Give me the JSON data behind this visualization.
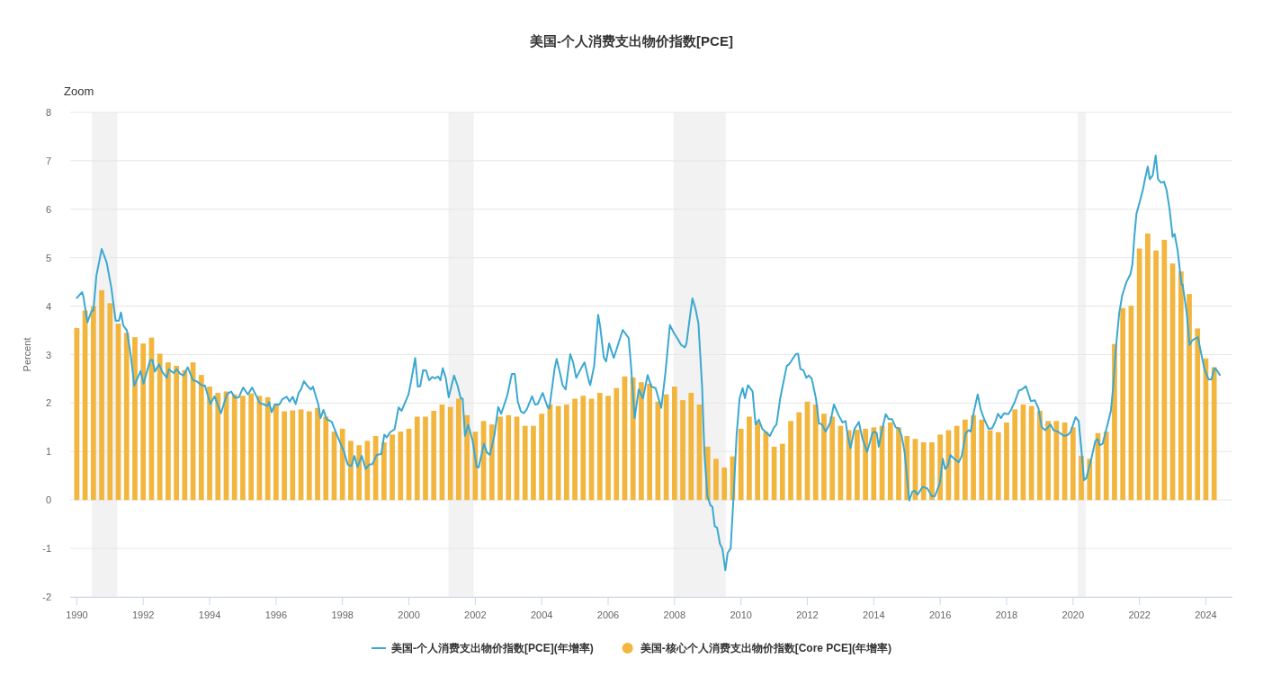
{
  "chart_data": {
    "type": "bar",
    "title": "美国-个人消费支出物价指数[PCE]",
    "ylabel": "Percent",
    "annotations": [
      "Zoom"
    ],
    "xlim": [
      1989.8,
      2024.8
    ],
    "xticks": [
      1990,
      1992,
      1994,
      1996,
      1998,
      2000,
      2002,
      2004,
      2006,
      2008,
      2010,
      2012,
      2014,
      2016,
      2018,
      2020,
      2022,
      2024
    ],
    "ylim": [
      -2,
      8
    ],
    "yticks": [
      -2,
      -1,
      0,
      1,
      2,
      3,
      4,
      5,
      6,
      7,
      8
    ],
    "grid": "y",
    "legend": "bottom",
    "bands": [
      {
        "axis": "x",
        "from": 1990.46,
        "to": 1991.22,
        "color": "#f2f2f2"
      },
      {
        "axis": "x",
        "from": 2001.19,
        "to": 2001.95,
        "color": "#f2f2f2"
      },
      {
        "axis": "x",
        "from": 2007.97,
        "to": 2009.54,
        "color": "#f2f2f2"
      },
      {
        "axis": "x",
        "from": 2020.14,
        "to": 2020.38,
        "color": "#f2f2f2"
      }
    ],
    "series": [
      {
        "name": "美国-个人消费支出物价指数[PCE](年增率)",
        "type": "line",
        "color": "#3ba8d1",
        "x": [
          1990,
          1990.16,
          1990.2,
          1990.32,
          1990.45,
          1990.5,
          1990.59,
          1990.75,
          1990.9,
          1991.04,
          1991.17,
          1991.27,
          1991.33,
          1991.4,
          1991.51,
          1991.63,
          1991.73,
          1991.92,
          1992.01,
          1992.21,
          1992.28,
          1992.35,
          1992.48,
          1992.57,
          1992.71,
          1992.77,
          1992.92,
          1993.01,
          1993.12,
          1993.22,
          1993.34,
          1993.5,
          1993.61,
          1993.75,
          1993.86,
          1994.02,
          1994.15,
          1994.34,
          1994.52,
          1994.65,
          1994.76,
          1994.88,
          1995.01,
          1995.15,
          1995.28,
          1995.51,
          1995.64,
          1995.74,
          1995.79,
          1995.87,
          1995.96,
          1996.1,
          1996.19,
          1996.32,
          1996.41,
          1996.5,
          1996.59,
          1996.68,
          1996.75,
          1996.84,
          1996.96,
          1997.05,
          1997.11,
          1997.27,
          1997.34,
          1997.43,
          1997.52,
          1997.68,
          1997.81,
          1997.98,
          1998.04,
          1998.16,
          1998.27,
          1998.36,
          1998.45,
          1998.58,
          1998.7,
          1998.81,
          1998.9,
          1999.03,
          1999.17,
          1999.26,
          1999.33,
          1999.44,
          1999.57,
          1999.69,
          1999.78,
          1999.99,
          2000.07,
          2000.19,
          2000.27,
          2000.34,
          2000.43,
          2000.52,
          2000.61,
          2000.7,
          2000.79,
          2000.88,
          2000.95,
          2001.02,
          2001.11,
          2001.2,
          2001.36,
          2001.47,
          2001.56,
          2001.62,
          2001.69,
          2001.79,
          2001.92,
          2002.04,
          2002.1,
          2002.26,
          2002.35,
          2002.44,
          2002.58,
          2002.69,
          2002.78,
          2002.96,
          2003.1,
          2003.19,
          2003.28,
          2003.37,
          2003.46,
          2003.55,
          2003.71,
          2003.8,
          2003.88,
          2004.03,
          2004.18,
          2004.23,
          2004.39,
          2004.45,
          2004.54,
          2004.63,
          2004.72,
          2004.86,
          2004.95,
          2005.04,
          2005.18,
          2005.29,
          2005.42,
          2005.46,
          2005.58,
          2005.7,
          2005.76,
          2005.87,
          2005.94,
          2006.03,
          2006.17,
          2006.44,
          2006.62,
          2006.69,
          2006.8,
          2006.92,
          2007.05,
          2007.19,
          2007.3,
          2007.43,
          2007.6,
          2007.73,
          2007.86,
          2007.98,
          2008.09,
          2008.2,
          2008.31,
          2008.36,
          2008.47,
          2008.54,
          2008.63,
          2008.72,
          2008.83,
          2008.9,
          2008.99,
          2009.08,
          2009.14,
          2009.21,
          2009.28,
          2009.37,
          2009.44,
          2009.53,
          2009.6,
          2009.69,
          2009.78,
          2009.87,
          2009.96,
          2010.05,
          2010.12,
          2010.21,
          2010.35,
          2010.44,
          2010.54,
          2010.64,
          2010.87,
          2011,
          2011.07,
          2011.18,
          2011.38,
          2011.45,
          2011.65,
          2011.72,
          2011.79,
          2011.88,
          2011.97,
          2012.04,
          2012.13,
          2012.26,
          2012.35,
          2012.44,
          2012.55,
          2012.69,
          2012.8,
          2012.94,
          2013.06,
          2013.15,
          2013.21,
          2013.3,
          2013.42,
          2013.55,
          2013.66,
          2013.8,
          2013.96,
          2014.03,
          2014.09,
          2014.15,
          2014.24,
          2014.36,
          2014.45,
          2014.55,
          2014.66,
          2014.75,
          2014.84,
          2014.93,
          2014.99,
          2015.07,
          2015.16,
          2015.23,
          2015.32,
          2015.47,
          2015.61,
          2015.75,
          2015.84,
          2015.99,
          2016.08,
          2016.15,
          2016.23,
          2016.31,
          2016.42,
          2016.56,
          2016.65,
          2016.77,
          2016.86,
          2016.92,
          2017.01,
          2017.13,
          2017.22,
          2017.33,
          2017.46,
          2017.56,
          2017.65,
          2017.74,
          2017.83,
          2017.92,
          2018.05,
          2018.14,
          2018.25,
          2018.37,
          2018.46,
          2018.58,
          2018.73,
          2018.85,
          2018.96,
          2019.06,
          2019.16,
          2019.32,
          2019.41,
          2019.55,
          2019.73,
          2019.86,
          2019.93,
          2020.08,
          2020.17,
          2020.26,
          2020.33,
          2020.4,
          2020.53,
          2020.67,
          2020.74,
          2020.8,
          2020.89,
          2021.03,
          2021.14,
          2021.21,
          2021.3,
          2021.39,
          2021.48,
          2021.61,
          2021.73,
          2021.79,
          2021.84,
          2021.91,
          2022.02,
          2022.11,
          2022.16,
          2022.25,
          2022.31,
          2022.4,
          2022.49,
          2022.56,
          2022.65,
          2022.74,
          2022.82,
          2022.91,
          2023,
          2023.06,
          2023.15,
          2023.27,
          2023.3,
          2023.42,
          2023.51,
          2023.6,
          2023.76,
          2023.85,
          2023.96,
          2024.08,
          2024.17,
          2024.26,
          2024.33,
          2024.42
        ],
        "values": [
          4.17,
          4.29,
          4.19,
          3.67,
          3.91,
          3.91,
          4.63,
          5.18,
          4.9,
          4.38,
          3.7,
          3.7,
          3.87,
          3.6,
          3.5,
          2.96,
          2.36,
          2.66,
          2.4,
          2.89,
          2.89,
          2.65,
          2.8,
          2.65,
          2.52,
          2.7,
          2.62,
          2.7,
          2.6,
          2.57,
          2.74,
          2.47,
          2.45,
          2.37,
          2.36,
          1.98,
          2.14,
          1.79,
          2.18,
          2.24,
          2.11,
          2.12,
          2.32,
          2.18,
          2.32,
          2,
          1.97,
          1.94,
          2.02,
          1.81,
          1.97,
          1.97,
          2.08,
          2.13,
          2.03,
          2.13,
          1.98,
          2.21,
          2.28,
          2.45,
          2.34,
          2.28,
          2.34,
          1.98,
          1.69,
          1.86,
          1.67,
          1.61,
          1.38,
          1.1,
          1.01,
          0.73,
          0.7,
          0.91,
          0.68,
          0.91,
          0.64,
          0.73,
          0.74,
          0.93,
          0.95,
          1.35,
          1.29,
          1.4,
          1.46,
          1.91,
          1.84,
          2.18,
          2.46,
          2.93,
          2.34,
          2.35,
          2.68,
          2.67,
          2.47,
          2.54,
          2.51,
          2.55,
          2.47,
          2.72,
          2.52,
          2.12,
          2.57,
          2.35,
          2.1,
          2.09,
          1.32,
          1.55,
          1.22,
          0.68,
          0.67,
          1.16,
          0.98,
          0.93,
          1.35,
          1.92,
          1.78,
          2.15,
          2.6,
          2.6,
          2.03,
          1.83,
          1.79,
          1.87,
          2.14,
          1.97,
          1.98,
          2.21,
          1.91,
          1.89,
          2.72,
          2.91,
          2.65,
          2.37,
          2.28,
          3.01,
          2.83,
          2.52,
          2.71,
          2.84,
          2.46,
          2.37,
          2.77,
          3.82,
          3.58,
          2.94,
          2.86,
          3.23,
          2.93,
          3.51,
          3.34,
          2.77,
          1.69,
          2.28,
          2.1,
          2.58,
          2.34,
          2.31,
          1.9,
          2.65,
          3.61,
          3.45,
          3.33,
          3.2,
          3.15,
          3.23,
          3.82,
          4.16,
          3.95,
          3.64,
          2.34,
          0.98,
          0.08,
          -0.11,
          -0.14,
          -0.54,
          -0.57,
          -0.91,
          -1,
          -1.45,
          -1.09,
          -1,
          0.11,
          1.35,
          2.1,
          2.31,
          2.1,
          2.37,
          2.24,
          1.56,
          1.66,
          1.47,
          1.32,
          1.5,
          1.56,
          2.09,
          2.77,
          2.8,
          3.01,
          3.02,
          2.7,
          2.68,
          2.52,
          2.57,
          2.51,
          2.09,
          1.58,
          1.56,
          1.41,
          1.6,
          1.97,
          1.75,
          1.6,
          1.63,
          1.35,
          1.07,
          1.47,
          1.61,
          1.26,
          0.99,
          1.38,
          1.41,
          1.38,
          1.1,
          1.42,
          1.77,
          1.67,
          1.67,
          1.5,
          1.48,
          1.32,
          0.98,
          0.54,
          -0.01,
          0.17,
          0.19,
          0.11,
          0.27,
          0.24,
          0.08,
          0.08,
          0.35,
          0.85,
          0.64,
          0.7,
          0.93,
          0.85,
          0.78,
          0.91,
          1.38,
          1.44,
          1.41,
          1.81,
          2.18,
          1.87,
          1.66,
          1.47,
          1.48,
          1.6,
          1.78,
          1.69,
          1.79,
          1.77,
          1.87,
          2.03,
          2.26,
          2.28,
          2.35,
          2.04,
          2.06,
          1.89,
          1.5,
          1.44,
          1.56,
          1.44,
          1.41,
          1.32,
          1.35,
          1.41,
          1.71,
          1.63,
          0.98,
          0.41,
          0.45,
          0.79,
          1.21,
          1.26,
          1.13,
          1.16,
          1.53,
          1.84,
          2.34,
          3.2,
          3.85,
          4.22,
          4.5,
          4.66,
          4.87,
          5.37,
          5.91,
          6.18,
          6.42,
          6.6,
          6.88,
          6.62,
          6.7,
          7.11,
          6.62,
          6.55,
          6.57,
          6.39,
          5.99,
          5.43,
          5.49,
          5.15,
          4.44,
          4.45,
          3.88,
          3.2,
          3.3,
          3.36,
          3.05,
          2.7,
          2.49,
          2.49,
          2.72,
          2.68,
          2.58
        ]
      },
      {
        "name": "美国-核心个人消费支出物价指数[Core PCE](年增率)",
        "color": "#f2b53d",
        "x": [
          1990,
          1990.25,
          1990.5,
          1990.75,
          1991,
          1991.25,
          1991.5,
          1991.75,
          1992,
          1992.25,
          1992.5,
          1992.75,
          1993,
          1993.25,
          1993.5,
          1993.75,
          1994,
          1994.25,
          1994.5,
          1994.75,
          1995,
          1995.25,
          1995.5,
          1995.75,
          1996,
          1996.25,
          1996.5,
          1996.75,
          1997,
          1997.25,
          1997.5,
          1997.75,
          1998,
          1998.25,
          1998.5,
          1998.75,
          1999,
          1999.25,
          1999.5,
          1999.75,
          2000,
          2000.25,
          2000.5,
          2000.75,
          2001,
          2001.25,
          2001.5,
          2001.75,
          2002,
          2002.25,
          2002.5,
          2002.75,
          2003,
          2003.25,
          2003.5,
          2003.75,
          2004,
          2004.25,
          2004.5,
          2004.75,
          2005,
          2005.25,
          2005.5,
          2005.75,
          2006,
          2006.25,
          2006.5,
          2006.75,
          2007,
          2007.25,
          2007.5,
          2007.75,
          2008,
          2008.25,
          2008.5,
          2008.75,
          2009,
          2009.25,
          2009.5,
          2009.75,
          2010,
          2010.25,
          2010.5,
          2010.75,
          2011,
          2011.25,
          2011.5,
          2011.75,
          2012,
          2012.25,
          2012.5,
          2012.75,
          2013,
          2013.25,
          2013.5,
          2013.75,
          2014,
          2014.25,
          2014.5,
          2014.75,
          2015,
          2015.25,
          2015.5,
          2015.75,
          2016,
          2016.25,
          2016.5,
          2016.75,
          2017,
          2017.25,
          2017.5,
          2017.75,
          2018,
          2018.25,
          2018.5,
          2018.75,
          2019,
          2019.25,
          2019.5,
          2019.75,
          2020,
          2020.25,
          2020.5,
          2020.75,
          2021,
          2021.25,
          2021.5,
          2021.75,
          2022,
          2022.25,
          2022.5,
          2022.75,
          2023,
          2023.25,
          2023.5,
          2023.75,
          2024,
          2024.25
        ],
        "values": [
          3.55,
          3.91,
          4,
          4.33,
          4.06,
          3.64,
          3.45,
          3.36,
          3.23,
          3.35,
          3.02,
          2.84,
          2.77,
          2.68,
          2.84,
          2.58,
          2.34,
          2.21,
          2.24,
          2.18,
          2.15,
          2.2,
          2.15,
          2.12,
          1.97,
          1.83,
          1.85,
          1.87,
          1.83,
          1.9,
          1.72,
          1.41,
          1.47,
          1.22,
          1.13,
          1.22,
          1.32,
          1.19,
          1.35,
          1.41,
          1.47,
          1.72,
          1.72,
          1.84,
          1.97,
          1.92,
          2.09,
          1.75,
          1.41,
          1.63,
          1.56,
          1.72,
          1.75,
          1.72,
          1.53,
          1.53,
          1.78,
          1.97,
          1.94,
          1.97,
          2.09,
          2.15,
          2.09,
          2.21,
          2.15,
          2.31,
          2.55,
          2.53,
          2.43,
          2.4,
          2.03,
          2.18,
          2.34,
          2.06,
          2.21,
          1.97,
          1.1,
          0.85,
          0.67,
          0.9,
          1.47,
          1.72,
          1.6,
          1.41,
          1.1,
          1.16,
          1.63,
          1.81,
          2.03,
          1.97,
          1.78,
          1.72,
          1.53,
          1.44,
          1.45,
          1.47,
          1.5,
          1.53,
          1.6,
          1.5,
          1.32,
          1.26,
          1.19,
          1.19,
          1.35,
          1.44,
          1.53,
          1.66,
          1.75,
          1.66,
          1.44,
          1.4,
          1.6,
          1.87,
          1.97,
          1.94,
          1.84,
          1.63,
          1.63,
          1.6,
          1.5,
          0.91,
          0.85,
          1.38,
          1.41,
          3.22,
          3.96,
          4.01,
          5.19,
          5.5,
          5.15,
          5.37,
          4.88,
          4.72,
          4.25,
          3.54,
          2.92,
          2.74
        ]
      }
    ]
  }
}
